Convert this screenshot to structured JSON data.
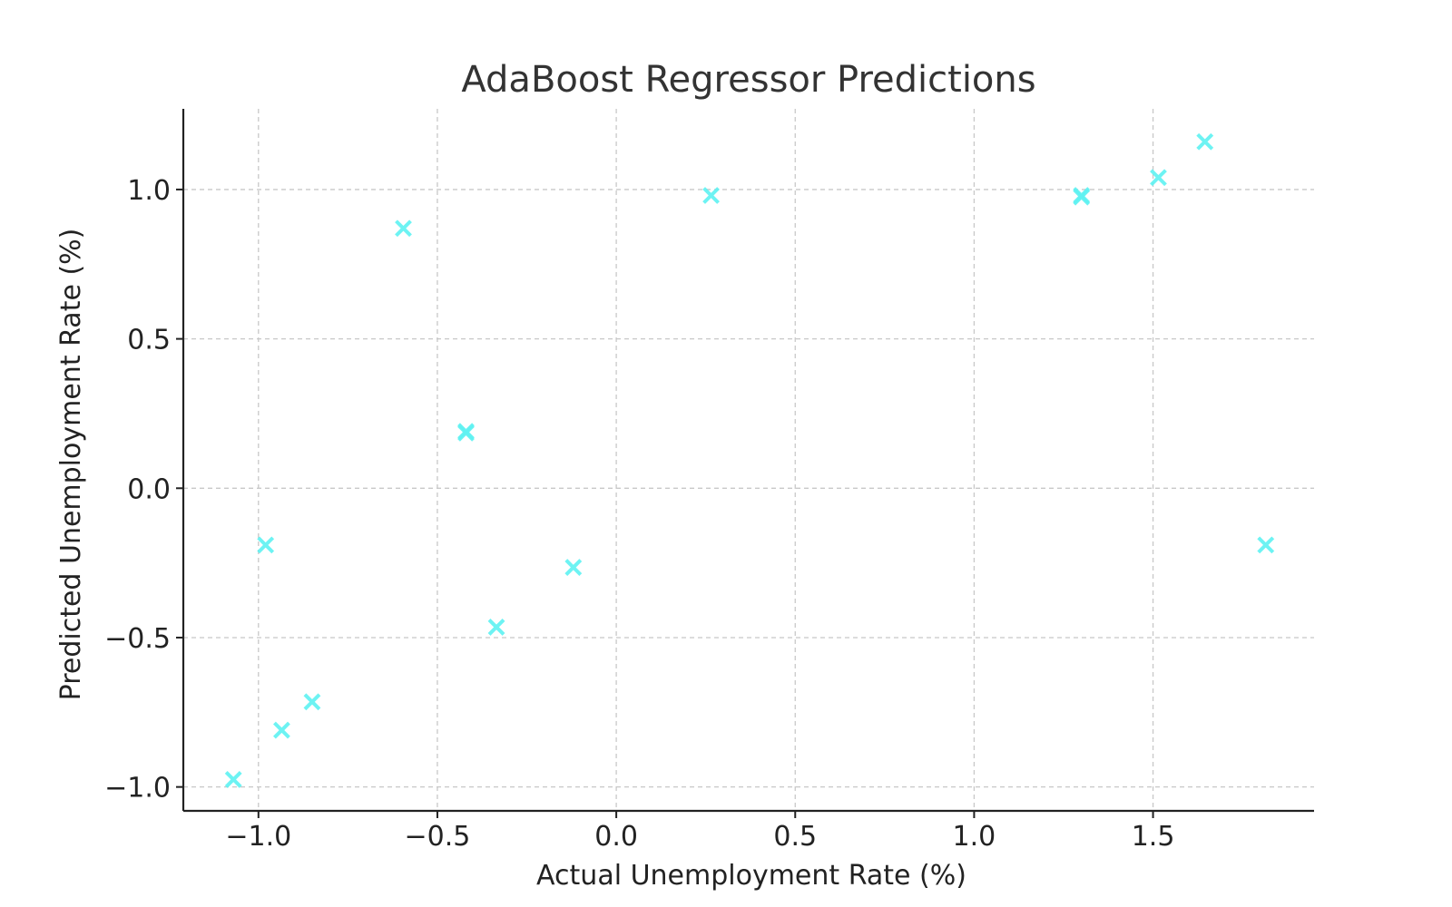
{
  "chart_data": {
    "type": "scatter",
    "title": "AdaBoost Regressor Predictions",
    "xlabel": "Actual Unemployment Rate (%)",
    "ylabel": "Predicted Unemployment Rate (%)",
    "xlim": [
      -1.21,
      1.95
    ],
    "ylim": [
      -1.08,
      1.27
    ],
    "xticks": [
      -1.0,
      -0.5,
      0.0,
      0.5,
      1.0,
      1.5
    ],
    "yticks": [
      -1.0,
      -0.5,
      0.0,
      0.5,
      1.0
    ],
    "xtick_labels": [
      "−1.0",
      "−0.5",
      "0.0",
      "0.5",
      "1.0",
      "1.5"
    ],
    "ytick_labels": [
      "−1.0",
      "−0.5",
      "0.0",
      "0.5",
      "1.0"
    ],
    "grid": true,
    "marker": "x",
    "color": "#5ef2f2",
    "points": [
      {
        "x": -1.07,
        "y": -0.975
      },
      {
        "x": -0.98,
        "y": -0.19
      },
      {
        "x": -0.935,
        "y": -0.81
      },
      {
        "x": -0.85,
        "y": -0.715
      },
      {
        "x": -0.595,
        "y": 0.87
      },
      {
        "x": -0.42,
        "y": 0.185
      },
      {
        "x": -0.42,
        "y": 0.19
      },
      {
        "x": -0.335,
        "y": -0.465
      },
      {
        "x": -0.12,
        "y": -0.265
      },
      {
        "x": 0.265,
        "y": 0.98
      },
      {
        "x": 1.3,
        "y": 0.975
      },
      {
        "x": 1.3,
        "y": 0.98
      },
      {
        "x": 1.515,
        "y": 1.04
      },
      {
        "x": 1.645,
        "y": 1.16
      },
      {
        "x": 1.815,
        "y": -0.19
      }
    ]
  }
}
